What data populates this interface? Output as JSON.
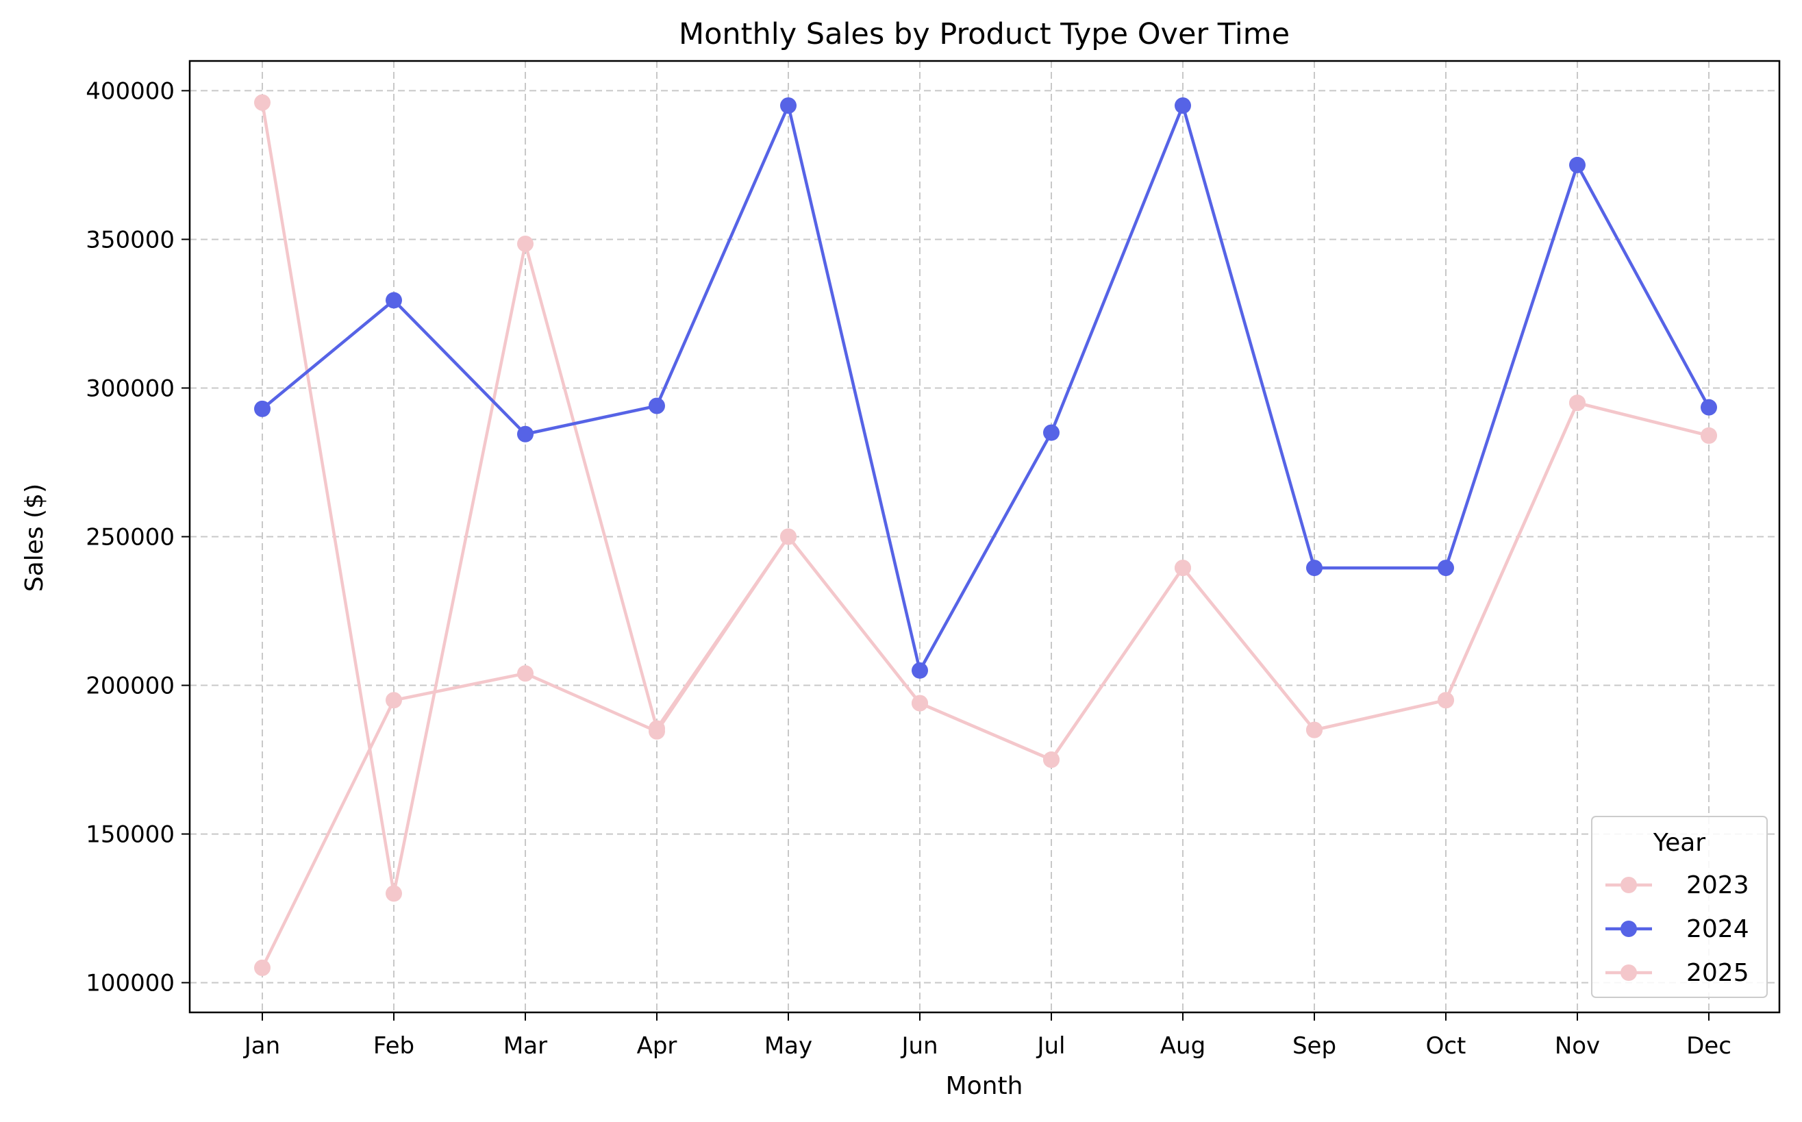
{
  "chart_data": {
    "type": "line",
    "title": "Monthly Sales by Product Type Over Time",
    "xlabel": "Month",
    "ylabel": "Sales ($)",
    "categories": [
      "Jan",
      "Feb",
      "Mar",
      "Apr",
      "May",
      "Jun",
      "Jul",
      "Aug",
      "Sep",
      "Oct",
      "Nov",
      "Dec"
    ],
    "ylim": [
      90000,
      410000
    ],
    "yticks": [
      100000,
      150000,
      200000,
      250000,
      300000,
      350000,
      400000
    ],
    "ytick_labels": [
      "100000",
      "150000",
      "200000",
      "250000",
      "300000",
      "350000",
      "400000"
    ],
    "grid": true,
    "legend": {
      "title": "Year",
      "position": "bottom-right"
    },
    "series": [
      {
        "name": "2023",
        "color": "#f4c7cb",
        "values": [
          396000,
          130000,
          348500,
          185500,
          250000,
          194000,
          175000,
          239500,
          185000,
          195000,
          295000,
          284000
        ]
      },
      {
        "name": "2024",
        "color": "#5663e6",
        "values": [
          293000,
          329500,
          284500,
          294000,
          395000,
          205000,
          285000,
          395000,
          239500,
          239500,
          375000,
          293500
        ]
      },
      {
        "name": "2025",
        "color": "#f4c7cb",
        "values": [
          105000,
          195000,
          204000,
          184500,
          250000,
          194000,
          175000,
          239500,
          185000,
          195000,
          295000,
          284000
        ]
      }
    ]
  }
}
